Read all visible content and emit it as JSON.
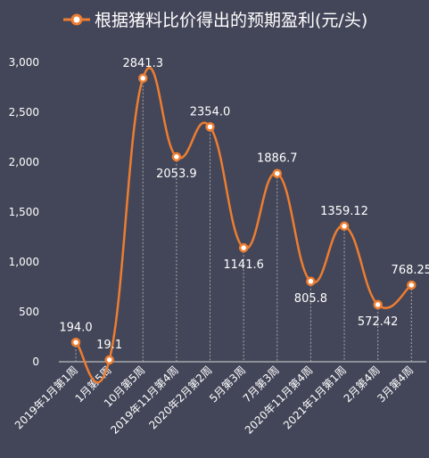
{
  "chart_data": {
    "type": "line",
    "series": [
      {
        "name": "根据猪料比价得出的预期盈利(元/头)",
        "values": [
          194.0,
          19.1,
          2841.3,
          2053.9,
          2354.0,
          1141.6,
          1886.7,
          805.8,
          1359.12,
          572.42,
          768.25
        ],
        "labels": [
          "194.0",
          "19.1",
          "2841.3",
          "2053.9",
          "2354.0",
          "1141.6",
          "1886.7",
          "805.8",
          "1359.12",
          "572.42",
          "768.25"
        ]
      }
    ],
    "categories": [
      "2019年1月第1周",
      "1月第5周",
      "10月第5周",
      "2019年11月第4周",
      "2020年2月第2周",
      "5月第3周",
      "7月第3周",
      "2020年11月第4周",
      "2021年1月第1周",
      "2月第4周",
      "3月第4周"
    ],
    "ylim": [
      0,
      3000
    ],
    "yticks": [
      0,
      500,
      1000,
      1500,
      2000,
      2500,
      3000
    ],
    "ytick_labels": [
      "0",
      "500",
      "1,000",
      "1,500",
      "2,000",
      "2,500",
      "3,000"
    ],
    "label_positions": [
      "above",
      "above",
      "above",
      "below",
      "above",
      "below",
      "above",
      "below",
      "above",
      "below",
      "above"
    ],
    "grid": false,
    "drop_lines": true,
    "legend": "top-center",
    "colors": {
      "background": "#434658",
      "line": "#ed7d31",
      "marker_fill": "#ffffff",
      "text": "#ffffff",
      "axis": "#d9d9d9",
      "drop_line": "#a6a6a6"
    }
  }
}
